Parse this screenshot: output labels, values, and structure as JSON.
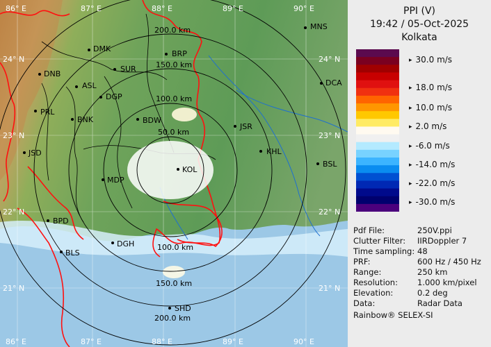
{
  "panel": {
    "product": "PPI (V)",
    "datetime": "19:42 / 05-Oct-2025",
    "site": "Kolkata"
  },
  "legend": {
    "colors": [
      "#5b0a4e",
      "#7a0020",
      "#a00000",
      "#c80000",
      "#e01010",
      "#f03010",
      "#ff6400",
      "#ff9600",
      "#ffc800",
      "#ffeb64",
      "#fffaf0",
      "#f0f0f0",
      "#b4eaff",
      "#78d2ff",
      "#3cb4ff",
      "#0a8cf0",
      "#0050d2",
      "#0028b4",
      "#000a8c",
      "#00006e",
      "#4b007d"
    ],
    "labels": [
      "30.0 m/s",
      "18.0 m/s",
      "10.0 m/s",
      "2.0 m/s",
      "-6.0 m/s",
      "-14.0 m/s",
      "-22.0 m/s",
      "-30.0 m/s"
    ]
  },
  "info": [
    {
      "key": "Pdf File:",
      "value": "250V.ppi"
    },
    {
      "key": "Clutter Filter:",
      "value": "IIRDoppler 7"
    },
    {
      "key": "Time sampling:",
      "value": "48"
    },
    {
      "key": "PRF:",
      "value": "600 Hz / 450 Hz"
    },
    {
      "key": "Range:",
      "value": "250 km"
    },
    {
      "key": "Resolution:",
      "value": "1.000 km/pixel"
    },
    {
      "key": "Elevation:",
      "value": "0.2 deg"
    },
    {
      "key": "Data:",
      "value": "Radar Data"
    }
  ],
  "credit": "Rainbow® SELEX-SI",
  "map": {
    "lon_top": [
      "86° E",
      "87° E",
      "88° E",
      "89° E",
      "90° E"
    ],
    "lon_bottom": [
      "86° E",
      "87° E",
      "88° E",
      "89° E",
      "90° E"
    ],
    "lat_left": [
      "24° N",
      "23° N",
      "22° N",
      "21° N"
    ],
    "lat_right": [
      "24° N",
      "23° N",
      "22° N",
      "21° N"
    ],
    "ranges": [
      "200.0 km",
      "150.0 km",
      "100.0 km",
      "50.0 km",
      "150.0 km",
      "100.0 km",
      "200.0 km"
    ],
    "cities": [
      "DMK",
      "BRP",
      "MNS",
      "DNB",
      "ASL",
      "SUR",
      "DGP",
      "DCA",
      "PRL",
      "BNK",
      "BDW",
      "JSR",
      "KHL",
      "JSD",
      "BSL",
      "MDP",
      "KOL",
      "BPD",
      "DGH",
      "BLS",
      "SHD"
    ]
  }
}
